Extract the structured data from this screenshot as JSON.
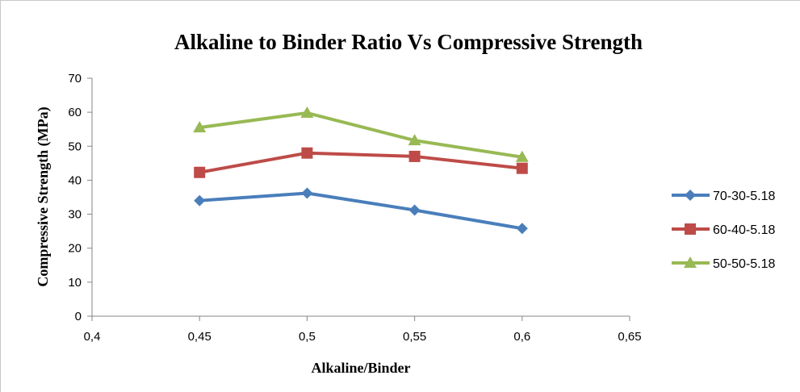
{
  "chart_data": {
    "type": "line",
    "title": "Alkaline to Binder Ratio Vs Compressive Strength",
    "xlabel": "Alkaline/Binder",
    "ylabel": "Compressive  Strength (MPa)",
    "xlim": [
      0.4,
      0.65
    ],
    "ylim": [
      0,
      70
    ],
    "x_ticks": [
      "0,4",
      "0,45",
      "0,5",
      "0,55",
      "0,6",
      "0,65"
    ],
    "y_ticks": [
      "0",
      "10",
      "20",
      "30",
      "40",
      "50",
      "60",
      "70"
    ],
    "x": [
      0.45,
      0.5,
      0.55,
      0.6
    ],
    "grid": false,
    "legend_position": "right",
    "series": [
      {
        "name": "70-30-5.18",
        "values": [
          34.0,
          36.2,
          31.2,
          25.8
        ],
        "color": "#4a7ebb",
        "marker": "diamond"
      },
      {
        "name": "60-40-5.18",
        "values": [
          42.3,
          48.0,
          47.0,
          43.5
        ],
        "color": "#be4b48",
        "marker": "square"
      },
      {
        "name": "50-50-5.18",
        "values": [
          55.5,
          59.8,
          51.7,
          46.8
        ],
        "color": "#98b954",
        "marker": "triangle"
      }
    ]
  }
}
